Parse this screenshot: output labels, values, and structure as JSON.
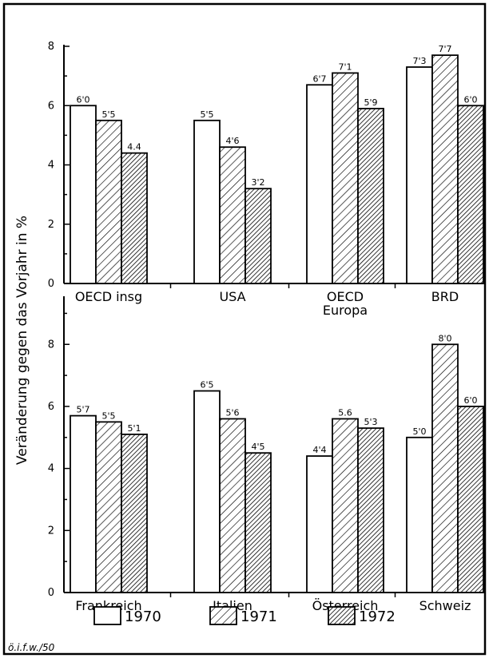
{
  "chart_data": {
    "type": "bar",
    "ylabel": "Veränderung gegen das Vorjahr in %",
    "source_note": "ö.i.f.w./50",
    "legend": [
      "1970",
      "1971",
      "1972"
    ],
    "series_styles": [
      "white",
      "hatched",
      "cross-hatched"
    ],
    "panels": [
      {
        "categories": [
          "OECD insg",
          "USA",
          "OECD\nEuropa",
          "BRD"
        ],
        "category_lines": [
          [
            "OECD insg"
          ],
          [
            "USA"
          ],
          [
            "OECD",
            "Europa"
          ],
          [
            "BRD"
          ]
        ],
        "yticks": [
          "0",
          "2",
          "4",
          "6",
          "8"
        ],
        "ylim": [
          0,
          8
        ],
        "series": [
          {
            "name": "1970",
            "values": [
              6.0,
              5.5,
              6.7,
              7.3
            ],
            "labels": [
              "6'0",
              "5'5",
              "6'7",
              "7'3"
            ]
          },
          {
            "name": "1971",
            "values": [
              5.5,
              4.6,
              7.1,
              7.7
            ],
            "labels": [
              "5'5",
              "4'6",
              "7'1",
              "7'7"
            ]
          },
          {
            "name": "1972",
            "values": [
              4.4,
              3.2,
              5.9,
              6.0
            ],
            "labels": [
              "4.4",
              "3'2",
              "5'9",
              "6'0"
            ]
          }
        ]
      },
      {
        "categories": [
          "Frankreich",
          "Italien",
          "Österreich",
          "Schweiz"
        ],
        "category_lines": [
          [
            "Frankreich"
          ],
          [
            "Italien"
          ],
          [
            "Österreich"
          ],
          [
            "Schweiz"
          ]
        ],
        "yticks": [
          "0",
          "2",
          "4",
          "6",
          "8"
        ],
        "ylim": [
          0,
          9.5
        ],
        "series": [
          {
            "name": "1970",
            "values": [
              5.7,
              6.5,
              4.4,
              5.0
            ],
            "labels": [
              "5'7",
              "6'5",
              "4'4",
              "5'0"
            ]
          },
          {
            "name": "1971",
            "values": [
              5.5,
              5.6,
              5.6,
              8.0
            ],
            "labels": [
              "5'5",
              "5'6",
              "5.6",
              "8'0"
            ]
          },
          {
            "name": "1972",
            "values": [
              5.1,
              4.5,
              5.3,
              6.0
            ],
            "labels": [
              "5'1",
              "4'5",
              "5'3",
              "6'0"
            ]
          }
        ]
      }
    ]
  }
}
